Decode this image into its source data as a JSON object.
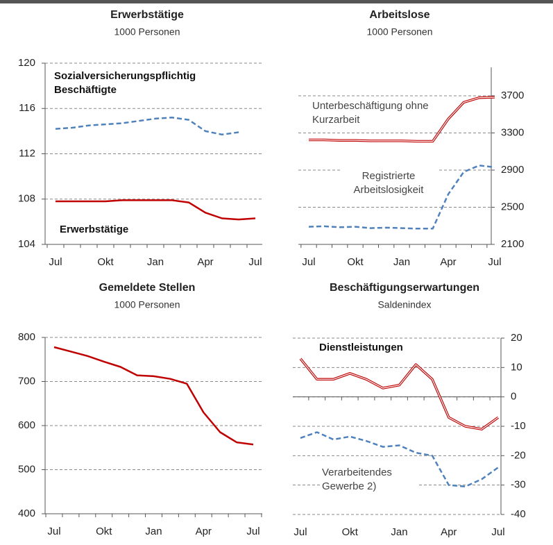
{
  "chart_data": [
    {
      "type": "line",
      "title": "Erwerbstätige",
      "subtitle": "1000 Personen",
      "categories": [
        "Jul",
        null,
        null,
        "Okt",
        null,
        null,
        "Jan",
        null,
        null,
        "Apr",
        null,
        null,
        "Jul"
      ],
      "ylim": [
        104,
        120
      ],
      "yticks": [
        104,
        108,
        112,
        116,
        120
      ],
      "yaxis": "left",
      "grid": true,
      "series": [
        {
          "name": "Sozialversicherungspflichtig Beschäftigte",
          "color": "#4f81bd",
          "style": "dashed",
          "values": [
            114.2,
            114.3,
            114.5,
            114.6,
            114.7,
            114.9,
            115.1,
            115.2,
            115.0,
            114.0,
            113.7,
            113.9,
            null
          ]
        },
        {
          "name": "Erwerbstätige",
          "color": "#c00000",
          "style": "solid",
          "values": [
            107.8,
            107.8,
            107.8,
            107.8,
            107.9,
            107.9,
            107.9,
            107.9,
            107.7,
            106.8,
            106.3,
            106.2,
            106.3
          ]
        }
      ]
    },
    {
      "type": "line",
      "title": "Arbeitslose",
      "subtitle": "1000 Personen",
      "categories": [
        "Jul",
        null,
        null,
        "Okt",
        null,
        null,
        "Jan",
        null,
        null,
        "Apr",
        null,
        null,
        "Jul"
      ],
      "ylim": [
        2100,
        3700
      ],
      "yticks": [
        2100,
        2500,
        2900,
        3300,
        3700
      ],
      "yaxis": "right",
      "grid": true,
      "series": [
        {
          "name": "Unterbeschäftigung ohne Kurzarbeit",
          "color": "#c00000",
          "style": "double",
          "values": [
            3225,
            3225,
            3220,
            3220,
            3215,
            3215,
            3215,
            3210,
            3210,
            3450,
            3630,
            3680,
            3685
          ]
        },
        {
          "name": "Registrierte Arbeitslosigkeit",
          "color": "#4f81bd",
          "style": "dashed",
          "values": [
            2290,
            2295,
            2285,
            2290,
            2275,
            2280,
            2275,
            2270,
            2270,
            2640,
            2880,
            2950,
            2930
          ]
        }
      ]
    },
    {
      "type": "line",
      "title": "Gemeldete Stellen",
      "subtitle": "1000 Personen",
      "categories": [
        "Jul",
        null,
        null,
        "Okt",
        null,
        null,
        "Jan",
        null,
        null,
        "Apr",
        null,
        null,
        "Jul"
      ],
      "ylim": [
        400,
        800
      ],
      "yticks": [
        400,
        500,
        600,
        700,
        800
      ],
      "yaxis": "left",
      "grid": true,
      "series": [
        {
          "color": "#c00000",
          "style": "solid",
          "values": [
            778,
            768,
            758,
            745,
            733,
            714,
            712,
            706,
            695,
            630,
            585,
            562,
            557
          ]
        }
      ]
    },
    {
      "type": "line",
      "title": "Beschäftigungserwartungen",
      "subtitle": "Saldenindex",
      "categories": [
        "Jul",
        null,
        null,
        "Okt",
        null,
        null,
        "Jan",
        null,
        null,
        "Apr",
        null,
        null,
        "Jul"
      ],
      "ylim": [
        -40,
        20
      ],
      "yticks": [
        -40,
        -30,
        -20,
        -10,
        0,
        10,
        20
      ],
      "yaxis": "right",
      "grid": true,
      "series": [
        {
          "name": "Dienstleistungen",
          "color": "#c00000",
          "style": "double",
          "values": [
            13,
            6,
            6,
            8,
            6,
            3,
            4,
            11,
            6,
            -7,
            -10,
            -11,
            -7
          ]
        },
        {
          "name": "Verarbeitendes Gewerbe 2)",
          "color": "#4f81bd",
          "style": "dashed",
          "values": [
            -14,
            -12,
            -14.5,
            -13.5,
            -15,
            -17,
            -16.5,
            -19,
            -20,
            -30,
            -30.5,
            -28,
            -24
          ]
        }
      ]
    }
  ]
}
